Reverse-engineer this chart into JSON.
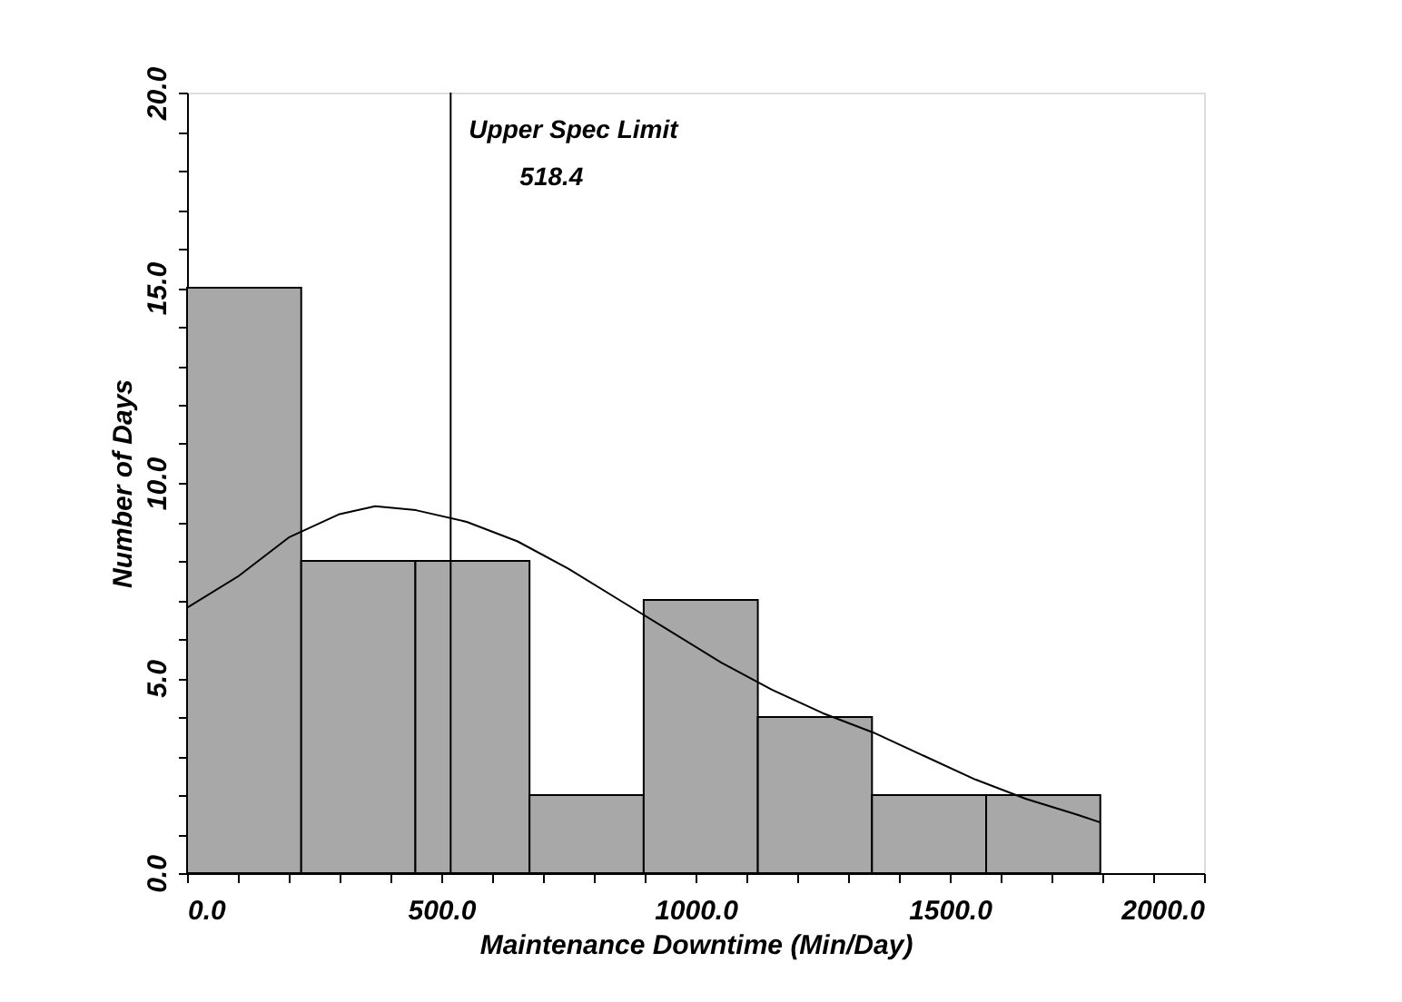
{
  "chart_data": {
    "type": "histogram",
    "xlabel": "Maintenance Downtime (Min/Day)",
    "ylabel": "Number of Days",
    "color": "#a8a8a8",
    "bins": [
      0,
      224.5,
      449,
      673.5,
      898,
      1122.5,
      1347,
      1571.5,
      1796
    ],
    "values": [
      15,
      8,
      8,
      2,
      7,
      4,
      2,
      2
    ],
    "series": [
      {
        "type": "line",
        "color": "#000000",
        "x": [
          0,
          100,
          200,
          300,
          370,
          450,
          550,
          650,
          750,
          850,
          950,
          1050,
          1150,
          1250,
          1350,
          1450,
          1550,
          1650,
          1750,
          1796
        ],
        "values": [
          6.8,
          7.6,
          8.6,
          9.2,
          9.4,
          9.3,
          9.0,
          8.5,
          7.8,
          7.0,
          6.2,
          5.4,
          4.7,
          4.1,
          3.6,
          3.0,
          2.4,
          1.9,
          1.5,
          1.3
        ]
      }
    ],
    "xlim": [
      0,
      2000
    ],
    "ylim": [
      0,
      20
    ],
    "xticks": [
      {
        "value": 0,
        "label": "0.0"
      },
      {
        "value": 100,
        "label": null
      },
      {
        "value": 200,
        "label": null
      },
      {
        "value": 300,
        "label": null
      },
      {
        "value": 400,
        "label": null
      },
      {
        "value": 500,
        "label": "500.0"
      },
      {
        "value": 600,
        "label": null
      },
      {
        "value": 700,
        "label": null
      },
      {
        "value": 800,
        "label": null
      },
      {
        "value": 900,
        "label": null
      },
      {
        "value": 1000,
        "label": "1000.0"
      },
      {
        "value": 1100,
        "label": null
      },
      {
        "value": 1200,
        "label": null
      },
      {
        "value": 1300,
        "label": null
      },
      {
        "value": 1400,
        "label": null
      },
      {
        "value": 1500,
        "label": "1500.0"
      },
      {
        "value": 1600,
        "label": null
      },
      {
        "value": 1700,
        "label": null
      },
      {
        "value": 1800,
        "label": null
      },
      {
        "value": 1900,
        "label": null
      },
      {
        "value": 2000,
        "label": "2000.0"
      }
    ],
    "yticks": [
      {
        "value": 0,
        "label": "0.0"
      },
      {
        "value": 1,
        "label": null
      },
      {
        "value": 2,
        "label": null
      },
      {
        "value": 3,
        "label": null
      },
      {
        "value": 4,
        "label": null
      },
      {
        "value": 5,
        "label": "5.0"
      },
      {
        "value": 6,
        "label": null
      },
      {
        "value": 7,
        "label": null
      },
      {
        "value": 8,
        "label": null
      },
      {
        "value": 9,
        "label": null
      },
      {
        "value": 10,
        "label": "10.0"
      },
      {
        "value": 11,
        "label": null
      },
      {
        "value": 12,
        "label": null
      },
      {
        "value": 13,
        "label": null
      },
      {
        "value": 14,
        "label": null
      },
      {
        "value": 15,
        "label": "15.0"
      },
      {
        "value": 16,
        "label": null
      },
      {
        "value": 17,
        "label": null
      },
      {
        "value": 18,
        "label": null
      },
      {
        "value": 19,
        "label": null
      },
      {
        "value": 20,
        "label": "20.0"
      }
    ],
    "ref_lines": [
      {
        "axis": "x",
        "value": 518.4,
        "label": "Upper Spec Limit",
        "color": "#000000"
      }
    ],
    "annotations": [
      "518.4"
    ]
  }
}
